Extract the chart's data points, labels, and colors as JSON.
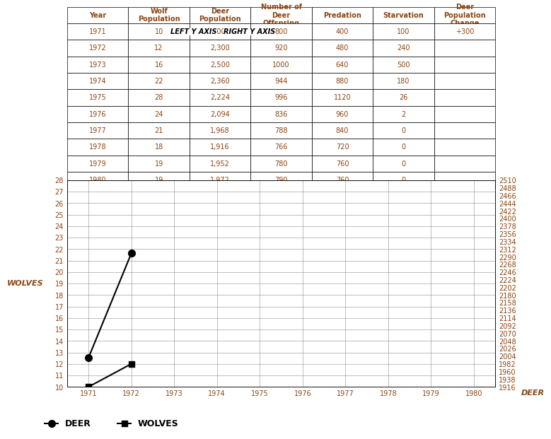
{
  "table": {
    "years": [
      1971,
      1972,
      1973,
      1974,
      1975,
      1976,
      1977,
      1978,
      1979,
      1980
    ],
    "wolf_pop": [
      10,
      12,
      16,
      22,
      28,
      24,
      21,
      18,
      19,
      19
    ],
    "deer_pop": [
      2000,
      2300,
      2500,
      2360,
      2224,
      2094,
      1968,
      1916,
      1952,
      1972
    ],
    "deer_offspring": [
      800,
      920,
      1000,
      944,
      996,
      836,
      788,
      766,
      780,
      790
    ],
    "predation": [
      400,
      480,
      640,
      880,
      1120,
      960,
      840,
      720,
      760,
      760
    ],
    "starvation": [
      100,
      240,
      500,
      180,
      26,
      2,
      0,
      0,
      0,
      0
    ],
    "deer_pop_change": [
      "+300",
      "",
      "",
      "",
      "",
      "",
      "",
      "",
      "",
      ""
    ]
  },
  "plot_years": [
    1971,
    1972
  ],
  "deer_plot": [
    2000,
    2300
  ],
  "wolf_plot": [
    10,
    12
  ],
  "left_yaxis": {
    "label": "WOLVES",
    "min": 10,
    "max": 28,
    "ticks": [
      10,
      11,
      12,
      13,
      14,
      15,
      16,
      17,
      18,
      19,
      20,
      21,
      22,
      23,
      24,
      25,
      26,
      27,
      28
    ]
  },
  "right_yaxis": {
    "label": "DEER",
    "min": 1916,
    "max": 2510,
    "ticks": [
      1916,
      1938,
      1960,
      1982,
      2004,
      2026,
      2048,
      2070,
      2092,
      2114,
      2136,
      2158,
      2180,
      2202,
      2224,
      2246,
      2268,
      2290,
      2312,
      2334,
      2356,
      2378,
      2400,
      2422,
      2444,
      2466,
      2488,
      2510
    ]
  },
  "xaxis": {
    "ticks": [
      1971,
      1972,
      1973,
      1974,
      1975,
      1976,
      1977,
      1978,
      1979,
      1980
    ],
    "label": ""
  },
  "header_left_axis": "LEFT Y AXIS",
  "header_right_axis": "RIGHT Y AXIS",
  "col_headers": [
    "Year",
    "Wolf\nPopulation",
    "Deer\nPopulation",
    "Number of\nDeer\nOffspring",
    "Predation",
    "Starvation",
    "Deer\nPopulation\nChange"
  ],
  "deer_color": "#000000",
  "wolf_color": "#000000",
  "grid_color": "#808080",
  "table_border_color": "#000000",
  "bg_color": "#ffffff",
  "text_color_header": "#8B4513",
  "text_color_data": "#8B4513",
  "legend_deer_label": "DEER",
  "legend_wolf_label": "WOLVES",
  "fig_width": 7.81,
  "fig_height": 6.67
}
